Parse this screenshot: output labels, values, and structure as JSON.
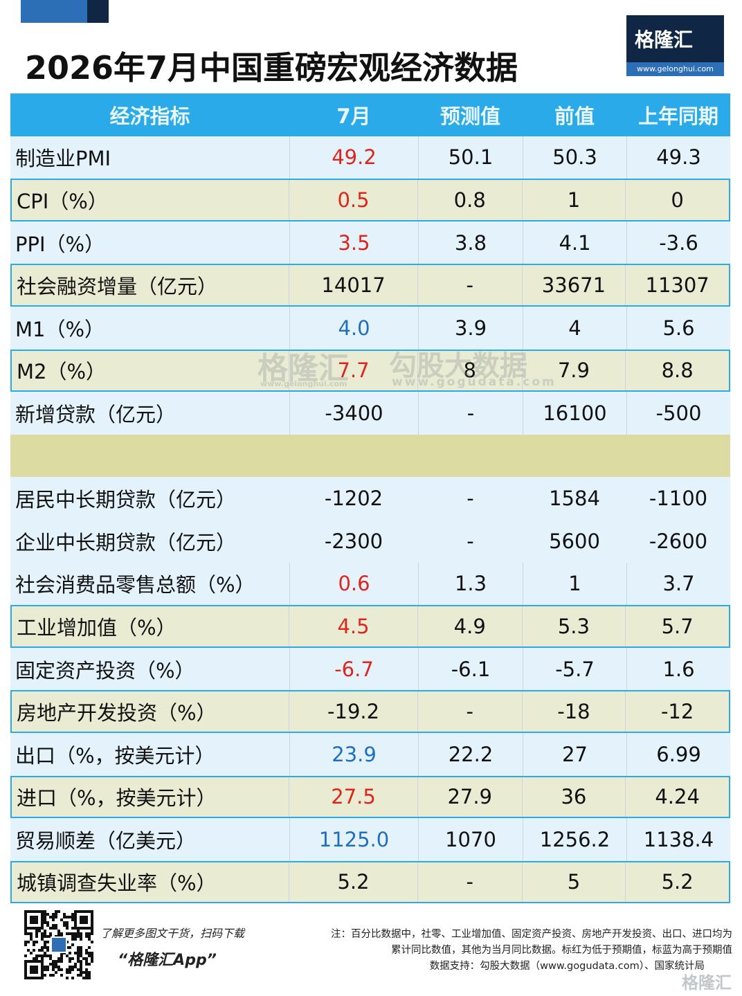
{
  "header": {
    "title": "2026年7月中国重磅宏观经济数据",
    "logo": "格隆汇",
    "logo_url": "www.gelonghui.com"
  },
  "table": {
    "columns": [
      "经济指标",
      "7月",
      "预测值",
      "前值",
      "上年同期"
    ],
    "rows": [
      {
        "cells": [
          "制造业PMI",
          "49.2",
          "50.1",
          "50.3",
          "49.3"
        ],
        "color": "#e0241c"
      },
      {
        "cells": [
          "CPI（%）",
          "0.5",
          "0.8",
          "1",
          "0"
        ],
        "color": "#e0241c"
      },
      {
        "cells": [
          "PPI（%）",
          "3.5",
          "3.8",
          "4.1",
          "-3.6"
        ],
        "color": "#e0241c"
      },
      {
        "cells": [
          "社会融资增量（亿元）",
          "14017",
          "-",
          "33671",
          "11307"
        ],
        "color": "#111111"
      },
      {
        "cells": [
          "M1（%）",
          "4.0",
          "3.9",
          "4",
          "5.6"
        ],
        "color": "#1e6fc0"
      },
      {
        "cells": [
          "M2（%）",
          "7.7",
          "8",
          "7.9",
          "8.8"
        ],
        "color": "#e0241c"
      },
      {
        "cells": [
          "新增贷款（亿元）",
          "-3400",
          "-",
          "16100",
          "-500"
        ],
        "color": "#111111"
      },
      {
        "cells": [
          "居民中长期贷款（亿元）",
          "-1202",
          "-",
          "1584",
          "-1100"
        ],
        "color": "#111111"
      },
      {
        "cells": [
          "企业中长期贷款（亿元）",
          "-2300",
          "-",
          "5600",
          "-2600"
        ],
        "color": "#111111"
      },
      {
        "cells": [
          "社会消费品零售总额（%）",
          "0.6",
          "1.3",
          "1",
          "3.7"
        ],
        "color": "#e0241c"
      },
      {
        "cells": [
          "工业增加值（%）",
          "4.5",
          "4.9",
          "5.3",
          "5.7"
        ],
        "color": "#e0241c"
      },
      {
        "cells": [
          "固定资产投资（%）",
          "-6.7",
          "-6.1",
          "-5.7",
          "1.6"
        ],
        "color": "#e0241c"
      },
      {
        "cells": [
          "房地产开发投资（%）",
          "-19.2",
          "-",
          "-18",
          "-12"
        ],
        "color": "#111111"
      },
      {
        "cells": [
          "出口（%，按美元计）",
          "23.9",
          "22.2",
          "27",
          "6.99"
        ],
        "color": "#1e6fc0"
      },
      {
        "cells": [
          "进口（%，按美元计）",
          "27.5",
          "27.9",
          "36",
          "4.24"
        ],
        "color": "#e0241c"
      },
      {
        "cells": [
          "贸易顺差（亿美元）",
          "1125.0",
          "1070",
          "1256.2",
          "1138.4"
        ],
        "color": "#1e6fc0"
      },
      {
        "cells": [
          "城镇调查失业率（%）",
          "5.2",
          "-",
          "5",
          "5.2"
        ],
        "color": "#111111"
      }
    ]
  },
  "watermark": {
    "left": "格隆汇",
    "left_url": "www.gelonghui.com",
    "right": "勾股大数据",
    "right_url": "www.gogudata.com"
  },
  "footer": {
    "promo": "了解更多图文干货，扫码下载",
    "app": "“格隆汇App”",
    "note_lines": [
      "注：百分比数据中，社零、工业增加值、固定资产投资、房地产开发投资、出口、进口均为",
      "累计同比数值，其他为当月同比数据。标红为低于预期值，标蓝为高于预期值"
    ],
    "source": "数据支持：勾股大数据（www.gogudata.com）、国家统计局",
    "corner_logo": "格隆汇"
  }
}
